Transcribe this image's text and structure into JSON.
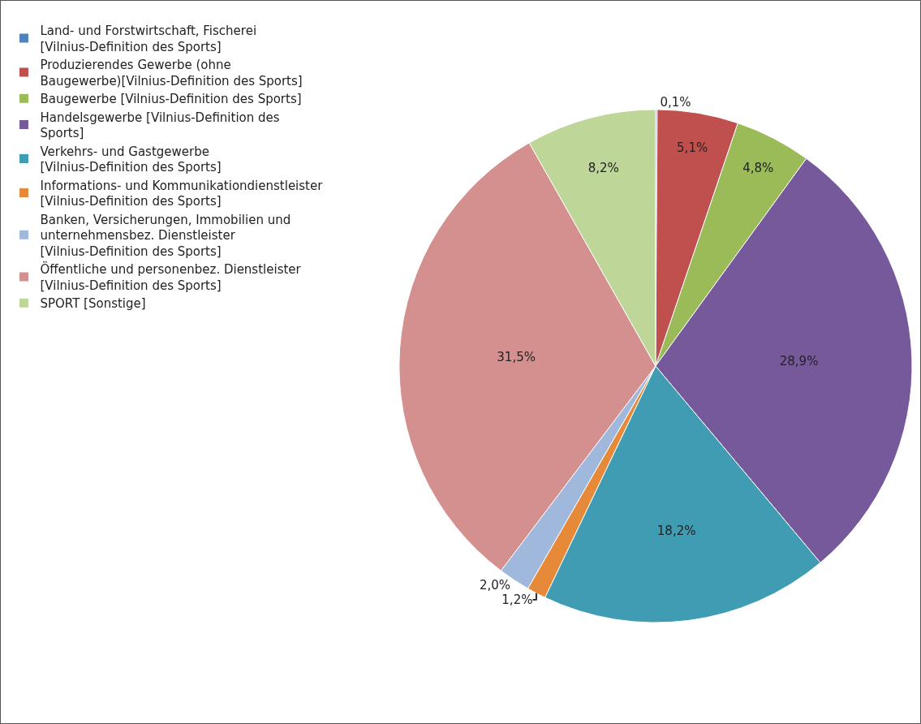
{
  "chart_data": {
    "type": "pie",
    "categories": [
      "Land- und Forstwirtschaft, Fischerei [Vilnius-Definition des Sports]",
      "Produzierendes Gewerbe (ohne Baugewerbe)[Vilnius-Definition des Sports]",
      "Baugewerbe [Vilnius-Definition des Sports]",
      "Handelsgewerbe [Vilnius-Definition des Sports]",
      "Verkehrs- und Gastgewerbe [Vilnius-Definition des Sports]",
      "Informations- und Kommunikationdienstleister [Vilnius-Definition des Sports]",
      "Banken, Versicherungen, Immobilien und unternehmensbez. Dienstleister [Vilnius-Definition des Sports]",
      "Öffentliche und personenbez. Dienstleister [Vilnius-Definition des Sports]",
      "SPORT [Sonstige]"
    ],
    "values": [
      0.1,
      5.1,
      4.8,
      28.9,
      18.2,
      1.2,
      2.0,
      31.5,
      8.2
    ],
    "value_labels": [
      "0,1%",
      "5,1%",
      "4,8%",
      "28,9%",
      "18,2%",
      "1,2%",
      "2,0%",
      "31,5%",
      "8,2%"
    ],
    "colors": [
      "#4f81bd",
      "#c0504d",
      "#9bbb59",
      "#76599b",
      "#3f9cb3",
      "#e68a3a",
      "#9fb8dc",
      "#d4908e",
      "#bfd699"
    ],
    "legend": "left"
  }
}
